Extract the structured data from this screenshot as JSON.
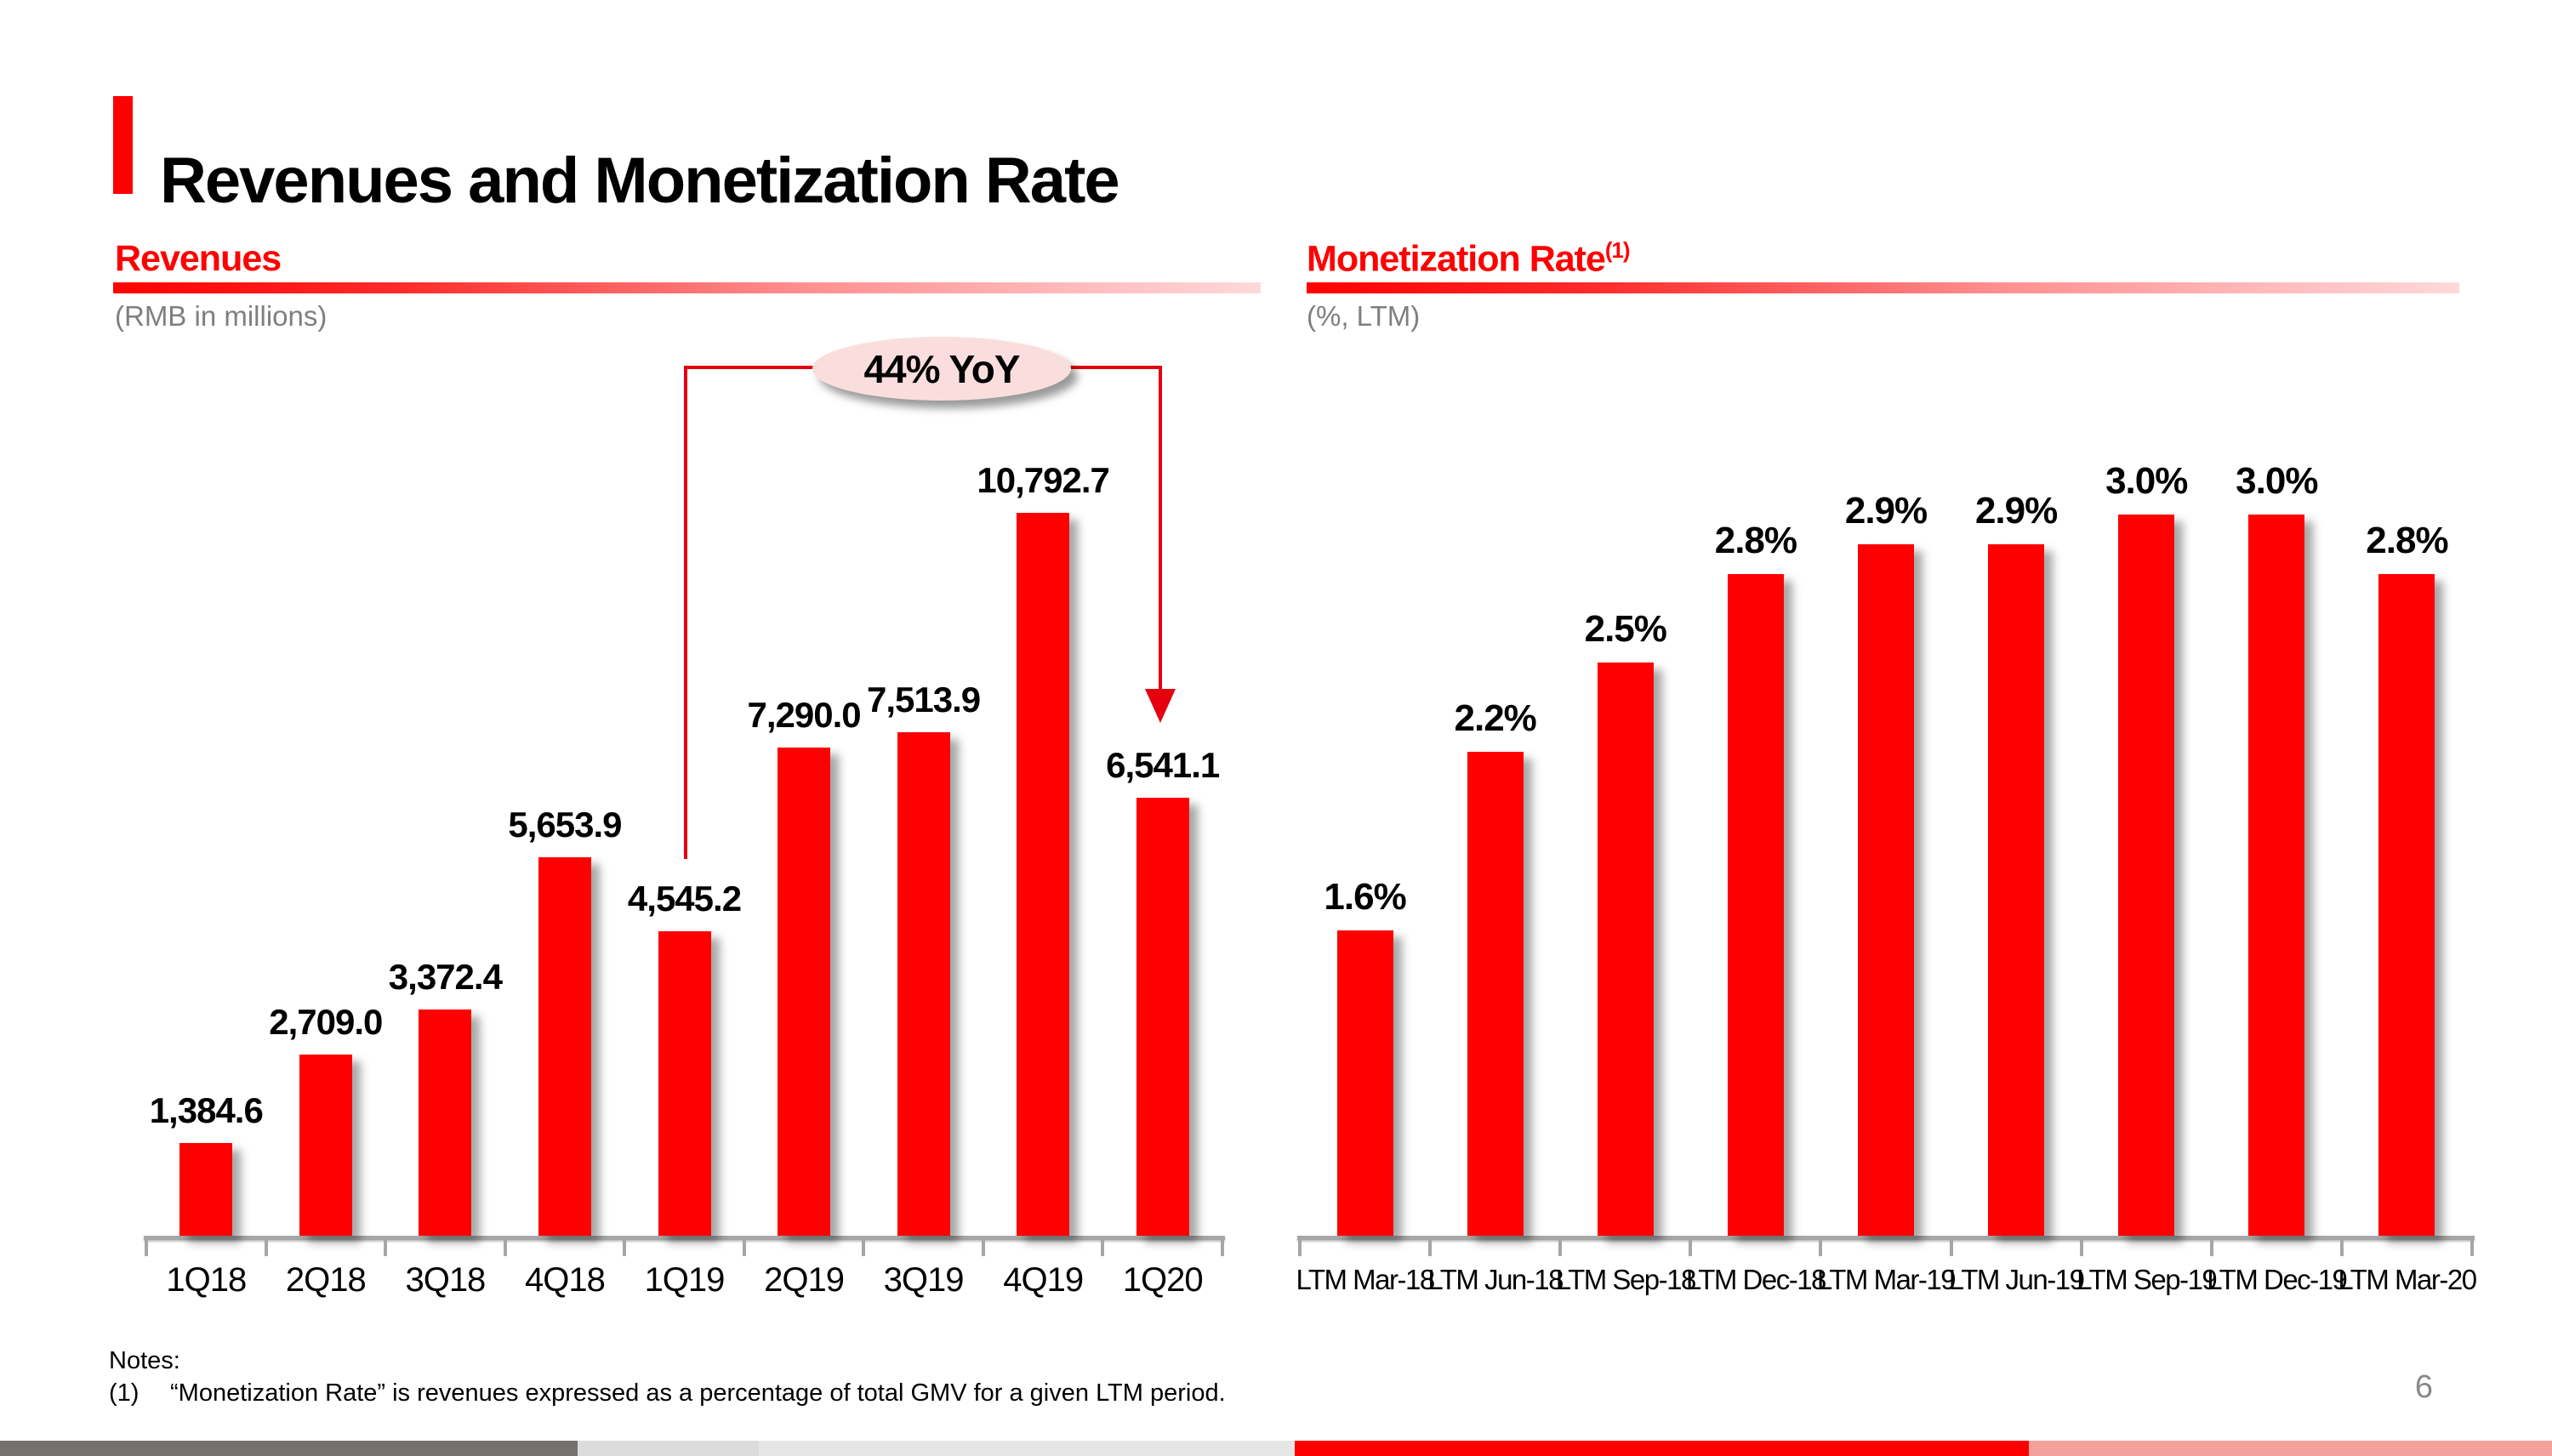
{
  "slide": {
    "title": "Revenues and Monetization Rate",
    "page_number": "6",
    "notes_label": "Notes:",
    "note_1_marker": "(1)",
    "note_1_text": "“Monetization Rate” is revenues expressed as a percentage of total GMV for a given LTM period."
  },
  "left_section": {
    "heading": "Revenues",
    "subtitle": "(RMB in millions)"
  },
  "right_section": {
    "heading": "Monetization Rate",
    "heading_superscript": "(1)",
    "subtitle": "(%, LTM)"
  },
  "annotation": {
    "label": "44% YoY",
    "from_category": "1Q19",
    "to_category": "1Q20"
  },
  "colors": {
    "bar_red": "#FF0000",
    "heading_red": "#FF0000",
    "bracket_red": "#E4000F",
    "ellipse_pink": "#FADEDD",
    "axis_gray": "#A6A6A6",
    "subtitle_gray": "#7F7F7F"
  },
  "footer": {
    "segments": [
      {
        "name": "dark-gray",
        "color": "#767171",
        "width_pct": 22.63
      },
      {
        "name": "mid-gray",
        "color": "#DBDBDB",
        "width_pct": 7.1
      },
      {
        "name": "light-gray",
        "color": "#E7E6E6",
        "width_pct": 21.0
      },
      {
        "name": "red",
        "color": "#FF0000",
        "width_pct": 28.77
      },
      {
        "name": "pink",
        "color": "#F2A29B",
        "width_pct": 20.5
      }
    ]
  },
  "chart_data": [
    {
      "id": "revenues",
      "type": "bar",
      "title": "Revenues",
      "ylabel": "RMB in millions",
      "categories": [
        "1Q18",
        "2Q18",
        "3Q18",
        "4Q18",
        "1Q19",
        "2Q19",
        "3Q19",
        "4Q19",
        "1Q20"
      ],
      "values": [
        1384.6,
        2709.0,
        3372.4,
        5653.9,
        4545.2,
        7290.0,
        7513.9,
        10792.7,
        6541.1
      ],
      "value_labels": [
        "1,384.6",
        "2,709.0",
        "3,372.4",
        "5,653.9",
        "4,545.2",
        "7,290.0",
        "7,513.9",
        "10,792.7",
        "6,541.1"
      ],
      "ylim": [
        0,
        10792.7
      ],
      "grid": false,
      "legend": "none",
      "bar_color": "#FF0000",
      "annotation": "44% YoY (1Q19 to 1Q20)"
    },
    {
      "id": "monetization_rate",
      "type": "bar",
      "title": "Monetization Rate",
      "ylabel": "%, LTM",
      "categories": [
        "LTM Mar-18",
        "LTM Jun-18",
        "LTM Sep-18",
        "LTM Dec-18",
        "LTM Mar-19",
        "LTM Jun-19",
        "LTM Sep-19",
        "LTM Dec-19",
        "LTM Mar-20"
      ],
      "values": [
        1.6,
        2.2,
        2.5,
        2.8,
        2.9,
        2.9,
        3.0,
        3.0,
        2.8
      ],
      "value_labels": [
        "1.6%",
        "2.2%",
        "2.5%",
        "2.8%",
        "2.9%",
        "2.9%",
        "3.0%",
        "3.0%",
        "2.8%"
      ],
      "ylim": [
        0.57,
        3.0
      ],
      "grid": false,
      "legend": "none",
      "bar_color": "#FF0000"
    }
  ]
}
